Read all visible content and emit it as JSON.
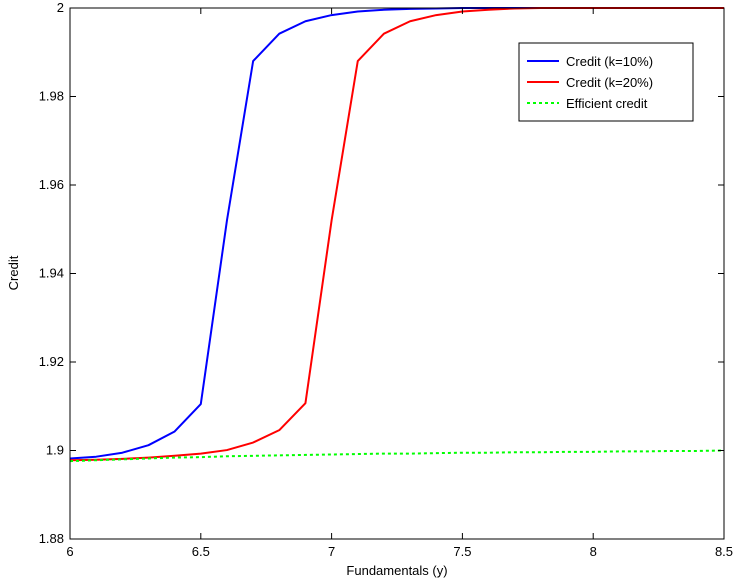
{
  "chart_data": {
    "type": "line",
    "title": "",
    "xlabel": "Fundamentals (y)",
    "ylabel": "Credit",
    "xlim": [
      6,
      8.5
    ],
    "ylim": [
      1.88,
      2
    ],
    "xticks": [
      6,
      6.5,
      7,
      7.5,
      8,
      8.5
    ],
    "xtick_labels": [
      "6",
      "6.5",
      "7",
      "7.5",
      "8",
      "8.5"
    ],
    "yticks": [
      1.88,
      1.9,
      1.92,
      1.94,
      1.96,
      1.98,
      2
    ],
    "ytick_labels": [
      "1.88",
      "1.9",
      "1.92",
      "1.94",
      "1.96",
      "1.98",
      "2"
    ],
    "grid": false,
    "legend_position": "top-right",
    "series": [
      {
        "name": "Credit (k=10%)",
        "color": "#0000ff",
        "style": "solid",
        "x": [
          6.0,
          6.1,
          6.2,
          6.3,
          6.4,
          6.5,
          6.6,
          6.7,
          6.8,
          6.9,
          7.0,
          7.1,
          7.2,
          7.3,
          7.4,
          7.5,
          7.6,
          7.7,
          7.8,
          7.9,
          8.0,
          8.1,
          8.2,
          8.3,
          8.4,
          8.5
        ],
        "y": [
          1.8982,
          1.8986,
          1.8995,
          1.9012,
          1.9043,
          1.9105,
          1.952,
          1.988,
          1.9942,
          1.997,
          1.9984,
          1.9992,
          1.9996,
          1.9998,
          1.9999,
          2.0,
          2.0,
          2.0,
          2.0,
          2.0,
          2.0,
          2.0,
          2.0,
          2.0,
          2.0,
          2.0
        ]
      },
      {
        "name": "Credit (k=20%)",
        "color": "#ff0000",
        "style": "solid",
        "x": [
          6.0,
          6.1,
          6.2,
          6.3,
          6.4,
          6.5,
          6.6,
          6.7,
          6.8,
          6.9,
          7.0,
          7.1,
          7.2,
          7.3,
          7.4,
          7.5,
          7.6,
          7.7,
          7.8,
          7.9,
          8.0,
          8.1,
          8.2,
          8.3,
          8.4,
          8.5
        ],
        "y": [
          1.8978,
          1.8979,
          1.8981,
          1.8984,
          1.8988,
          1.8993,
          1.9001,
          1.9018,
          1.9046,
          1.9107,
          1.952,
          1.988,
          1.9942,
          1.997,
          1.9984,
          1.9992,
          1.9996,
          1.9999,
          2.0,
          2.0,
          2.0,
          2.0,
          2.0,
          2.0,
          2.0,
          2.0
        ]
      },
      {
        "name": "Efficient credit",
        "color": "#00ff00",
        "style": "dotted",
        "x": [
          6.0,
          6.1,
          6.2,
          6.3,
          6.4,
          6.5,
          6.6,
          6.7,
          6.8,
          6.9,
          7.0,
          7.1,
          7.2,
          7.3,
          7.4,
          7.5,
          7.6,
          7.7,
          7.8,
          7.9,
          8.0,
          8.1,
          8.2,
          8.3,
          8.4,
          8.5
        ],
        "y": [
          1.8976,
          1.8978,
          1.898,
          1.8982,
          1.8984,
          1.8985,
          1.8987,
          1.8988,
          1.8989,
          1.899,
          1.8991,
          1.8992,
          1.8993,
          1.8993,
          1.8994,
          1.8995,
          1.8995,
          1.8996,
          1.8996,
          1.8997,
          1.8997,
          1.8998,
          1.8998,
          1.8999,
          1.8999,
          1.9
        ]
      }
    ]
  }
}
